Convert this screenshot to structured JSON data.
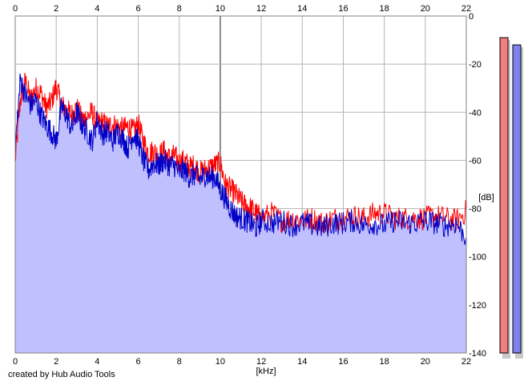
{
  "credit": "created by Hub Audio Tools",
  "chart_data": {
    "type": "area",
    "title": "",
    "xlabel": "[kHz]",
    "ylabel": "[dB]",
    "xlim": [
      0,
      22
    ],
    "ylim": [
      -140,
      0
    ],
    "x_ticks": [
      0,
      2,
      4,
      6,
      8,
      10,
      12,
      14,
      16,
      18,
      20,
      22
    ],
    "y_ticks": [
      0,
      -20,
      -40,
      -60,
      -80,
      -100,
      -120,
      -140
    ],
    "grid": true,
    "colors": {
      "background": "#ffffff",
      "grid": "#b4b4b4",
      "grid_major": "#8c8c8c",
      "fill": "#c0c0ff",
      "series_red": "#ff0000",
      "series_blue": "#0000c8"
    },
    "x": [
      0,
      0.25,
      0.5,
      0.75,
      1,
      1.25,
      1.5,
      1.75,
      2,
      2.25,
      2.5,
      2.75,
      3,
      3.25,
      3.5,
      3.75,
      4,
      4.25,
      4.5,
      4.75,
      5,
      5.25,
      5.5,
      5.75,
      6,
      6.25,
      6.5,
      6.75,
      7,
      7.25,
      7.5,
      7.75,
      8,
      8.25,
      8.5,
      8.75,
      9,
      9.25,
      9.5,
      9.75,
      10,
      10.25,
      10.5,
      10.75,
      11,
      11.25,
      11.5,
      11.75,
      12,
      12.5,
      13,
      13.5,
      14,
      14.5,
      15,
      15.5,
      16,
      16.5,
      17,
      17.5,
      18,
      18.5,
      19,
      19.5,
      20,
      20.5,
      21,
      21.5,
      22
    ],
    "series": [
      {
        "color": "#ff0000",
        "values": [
          -60,
          -35,
          -27,
          -35,
          -30,
          -32,
          -38,
          -36,
          -29,
          -37,
          -39,
          -41,
          -38,
          -43,
          -42,
          -40,
          -45,
          -44,
          -46,
          -45,
          -46,
          -47,
          -46,
          -48,
          -45,
          -52,
          -57,
          -56,
          -58,
          -56,
          -59,
          -58,
          -61,
          -60,
          -63,
          -62,
          -65,
          -64,
          -63,
          -62,
          -61,
          -70,
          -72,
          -74,
          -77,
          -79,
          -80,
          -82,
          -84,
          -82,
          -85,
          -84,
          -85,
          -84,
          -86,
          -84,
          -84,
          -83,
          -84,
          -82,
          -82,
          -84,
          -84,
          -84,
          -84,
          -83,
          -84,
          -85,
          -81
        ]
      },
      {
        "color": "#0000c8",
        "values": [
          -55,
          -26,
          -33,
          -37,
          -35,
          -41,
          -45,
          -48,
          -52,
          -38,
          -41,
          -47,
          -40,
          -45,
          -48,
          -52,
          -43,
          -49,
          -48,
          -52,
          -48,
          -51,
          -55,
          -49,
          -52,
          -60,
          -64,
          -61,
          -62,
          -60,
          -62,
          -62,
          -65,
          -64,
          -67,
          -66,
          -68,
          -66,
          -67,
          -67,
          -72,
          -76,
          -80,
          -83,
          -84,
          -85,
          -86,
          -88,
          -85,
          -86,
          -85,
          -87,
          -86,
          -87,
          -88,
          -86,
          -86,
          -85,
          -87,
          -86,
          -87,
          -85,
          -86,
          -86,
          -85,
          -86,
          -87,
          -86,
          -92
        ]
      }
    ],
    "level_meters": [
      {
        "color": "#f08080",
        "level_db": -7
      },
      {
        "color": "#8080f0",
        "level_db": -10
      }
    ]
  }
}
